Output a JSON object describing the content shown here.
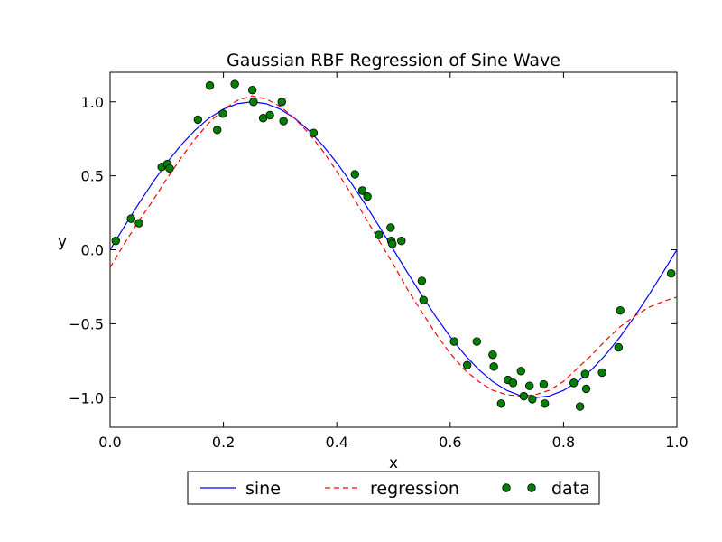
{
  "chart_data": {
    "type": "line",
    "title": "Gaussian RBF Regression of Sine Wave",
    "xlabel": "x",
    "ylabel": "y",
    "xlim": [
      0.0,
      1.0
    ],
    "ylim": [
      -1.2,
      1.2
    ],
    "xticks": [
      0.0,
      0.2,
      0.4,
      0.6,
      0.8,
      1.0
    ],
    "xtick_labels": [
      "0.0",
      "0.2",
      "0.4",
      "0.6",
      "0.8",
      "1.0"
    ],
    "yticks": [
      -1.0,
      -0.5,
      0.0,
      0.5,
      1.0
    ],
    "ytick_labels": [
      "−1.0",
      "−0.5",
      "0.0",
      "0.5",
      "1.0"
    ],
    "grid": false,
    "legend_position": "below plot, horizontal",
    "series": [
      {
        "name": "sine",
        "style": "solid line",
        "color": "#0000ff",
        "x": [
          0.0,
          0.025,
          0.05,
          0.075,
          0.1,
          0.125,
          0.15,
          0.175,
          0.2,
          0.225,
          0.25,
          0.275,
          0.3,
          0.325,
          0.35,
          0.375,
          0.4,
          0.425,
          0.45,
          0.475,
          0.5,
          0.525,
          0.55,
          0.575,
          0.6,
          0.625,
          0.65,
          0.675,
          0.7,
          0.725,
          0.75,
          0.775,
          0.8,
          0.825,
          0.85,
          0.875,
          0.9,
          0.925,
          0.95,
          0.975,
          1.0
        ],
        "y": [
          0.0,
          0.156,
          0.309,
          0.454,
          0.588,
          0.707,
          0.809,
          0.891,
          0.951,
          0.988,
          1.0,
          0.988,
          0.951,
          0.891,
          0.809,
          0.707,
          0.588,
          0.454,
          0.309,
          0.156,
          0.0,
          -0.156,
          -0.309,
          -0.454,
          -0.588,
          -0.707,
          -0.809,
          -0.891,
          -0.951,
          -0.988,
          -1.0,
          -0.988,
          -0.951,
          -0.891,
          -0.809,
          -0.707,
          -0.588,
          -0.454,
          -0.309,
          -0.156,
          0.0
        ]
      },
      {
        "name": "regression",
        "style": "dashed line",
        "color": "#ff0000",
        "x": [
          0.0,
          0.025,
          0.05,
          0.075,
          0.1,
          0.125,
          0.15,
          0.175,
          0.2,
          0.225,
          0.25,
          0.275,
          0.3,
          0.325,
          0.35,
          0.375,
          0.4,
          0.425,
          0.45,
          0.475,
          0.5,
          0.525,
          0.55,
          0.575,
          0.6,
          0.625,
          0.65,
          0.675,
          0.7,
          0.725,
          0.75,
          0.775,
          0.8,
          0.825,
          0.85,
          0.875,
          0.9,
          0.925,
          0.95,
          0.975,
          1.0
        ],
        "y": [
          -0.12,
          0.04,
          0.19,
          0.33,
          0.48,
          0.62,
          0.75,
          0.86,
          0.95,
          1.01,
          1.04,
          1.02,
          0.97,
          0.89,
          0.79,
          0.67,
          0.53,
          0.38,
          0.22,
          0.06,
          -0.1,
          -0.27,
          -0.42,
          -0.57,
          -0.7,
          -0.81,
          -0.89,
          -0.95,
          -0.98,
          -0.99,
          -0.98,
          -0.95,
          -0.89,
          -0.8,
          -0.71,
          -0.61,
          -0.52,
          -0.45,
          -0.39,
          -0.35,
          -0.32
        ]
      },
      {
        "name": "data",
        "style": "markers",
        "color": "#008000",
        "x": [
          0.01,
          0.037,
          0.051,
          0.091,
          0.101,
          0.105,
          0.155,
          0.176,
          0.189,
          0.199,
          0.22,
          0.251,
          0.253,
          0.27,
          0.282,
          0.303,
          0.306,
          0.359,
          0.432,
          0.445,
          0.454,
          0.474,
          0.495,
          0.496,
          0.498,
          0.514,
          0.55,
          0.553,
          0.607,
          0.63,
          0.647,
          0.675,
          0.677,
          0.69,
          0.702,
          0.711,
          0.725,
          0.73,
          0.74,
          0.745,
          0.765,
          0.767,
          0.818,
          0.829,
          0.838,
          0.84,
          0.868,
          0.897,
          0.9,
          0.99
        ],
        "y": [
          0.06,
          0.21,
          0.18,
          0.56,
          0.58,
          0.55,
          0.88,
          1.11,
          0.81,
          0.92,
          1.12,
          1.08,
          1.0,
          0.89,
          0.91,
          1.0,
          0.87,
          0.79,
          0.51,
          0.4,
          0.36,
          0.1,
          0.15,
          0.06,
          0.04,
          0.06,
          -0.21,
          -0.34,
          -0.62,
          -0.78,
          -0.62,
          -0.71,
          -0.79,
          -1.04,
          -0.88,
          -0.9,
          -0.82,
          -0.99,
          -0.92,
          -1.01,
          -0.91,
          -1.04,
          -0.9,
          -1.06,
          -0.84,
          -0.94,
          -0.83,
          -0.66,
          -0.41,
          -0.16
        ]
      }
    ]
  }
}
